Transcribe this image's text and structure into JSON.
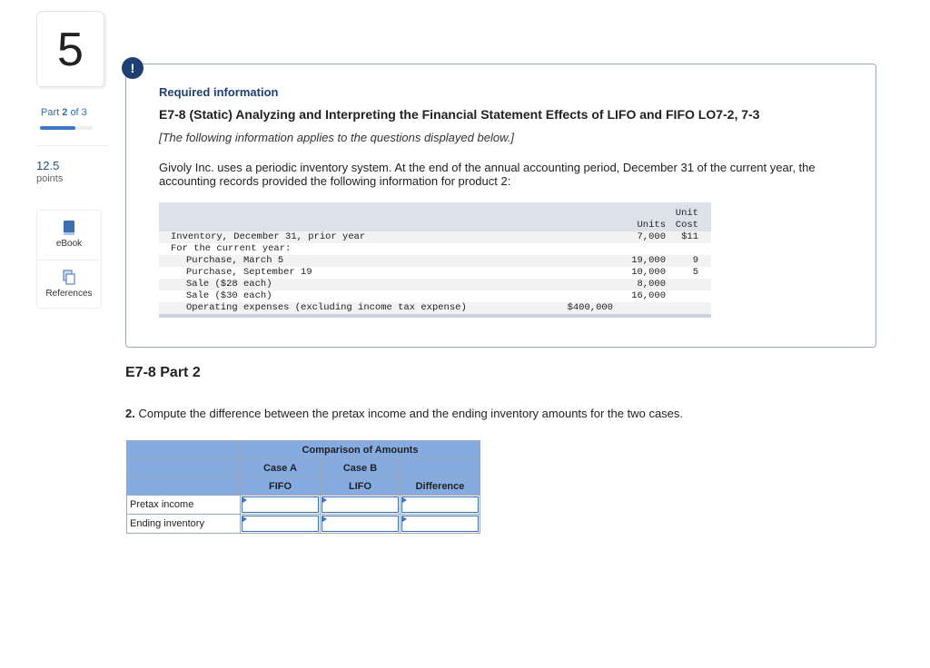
{
  "sidebar": {
    "question_number": "5",
    "part_prefix": "Part",
    "part_current": "2",
    "part_suffix": "of 3",
    "progress_percent": 67,
    "points": "12.5",
    "points_label": "points",
    "tools": [
      {
        "label": "eBook",
        "icon": "book-icon"
      },
      {
        "label": "References",
        "icon": "copy-icon"
      }
    ]
  },
  "required": {
    "alert_icon": "!",
    "heading": "Required information",
    "title": "E7-8 (Static) Analyzing and Interpreting the Financial Statement Effects of LIFO and FIFO LO7-2, 7-3",
    "note": "[The following information applies to the questions displayed below.]",
    "intro": "Givoly Inc. uses a periodic inventory system. At the end of the annual accounting period, December 31 of the current year, the accounting records provided the following information for product 2:",
    "table": {
      "headers": {
        "units": "Units",
        "unit_cost_1": "Unit",
        "unit_cost_2": "Cost"
      },
      "rows": [
        {
          "label": "Inventory, December 31, prior year",
          "amount": "",
          "units": "7,000",
          "cost": "$11",
          "indent": false
        },
        {
          "label": "For the current year:",
          "amount": "",
          "units": "",
          "cost": "",
          "indent": false
        },
        {
          "label": "Purchase, March 5",
          "amount": "",
          "units": "19,000",
          "cost": "9",
          "indent": true
        },
        {
          "label": "Purchase, September 19",
          "amount": "",
          "units": "10,000",
          "cost": "5",
          "indent": true
        },
        {
          "label": "Sale ($28 each)",
          "amount": "",
          "units": "8,000",
          "cost": "",
          "indent": true
        },
        {
          "label": "Sale ($30 each)",
          "amount": "",
          "units": "16,000",
          "cost": "",
          "indent": true
        },
        {
          "label": "Operating expenses (excluding income tax expense)",
          "amount": "$400,000",
          "units": "",
          "cost": "",
          "indent": true
        }
      ]
    }
  },
  "part": {
    "title": "E7-8 Part 2",
    "question_num": "2.",
    "question": " Compute the difference between the pretax income and the ending inventory amounts for the two cases.",
    "grid": {
      "header": "Comparison of Amounts",
      "case_a": "Case A",
      "case_b": "Case B",
      "fifo": "FIFO",
      "lifo": "LIFO",
      "difference": "Difference",
      "rows": [
        {
          "label": "Pretax income",
          "fifo": "",
          "lifo": "",
          "difference": ""
        },
        {
          "label": "Ending inventory",
          "fifo": "",
          "lifo": "",
          "difference": ""
        }
      ]
    }
  }
}
